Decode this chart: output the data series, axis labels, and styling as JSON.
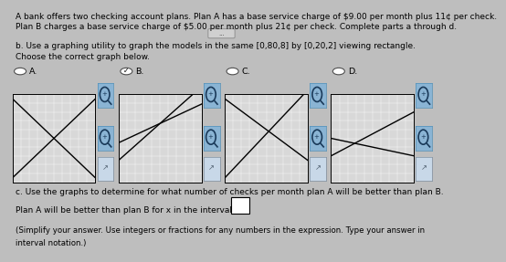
{
  "bg_color": "#bebebe",
  "text_color": "#000000",
  "line1": "A bank offers two checking account plans. Plan A has a base service charge of $9.00 per month plus 11¢ per check.",
  "line2": "Plan B charges a base service charge of $5.00 per month plus 21¢ per check. Complete parts a through d.",
  "part_b": "b. Use a graphing utility to graph the models in the same [0,80,8] by [0,20,2] viewing rectangle.",
  "choose": "Choose the correct graph below.",
  "options": [
    "A.",
    "B.",
    "C.",
    "D."
  ],
  "selected": 1,
  "part_c": "c. Use the graphs to determine for what number of checks per month plan A will be better than plan B.",
  "plan_text": "Plan A will be better than plan B for x in the interval",
  "simplify1": "(Simplify your answer. Use integers or fractions for any numbers in the expression. Type your answer in",
  "simplify2": "interval notation.)",
  "xmin": 0,
  "xmax": 80,
  "ymin": 0,
  "ymax": 20,
  "planA_m": 0.11,
  "planA_b": 9.0,
  "planB_m": 0.21,
  "planB_b": 5.0,
  "graph_bg": "#d8d8d8",
  "graph_line_color": "#000000",
  "graph_spine_color": "#000000",
  "graph_grid_color": "#ffffff",
  "btn_face": "#8ab4d4",
  "btn_edge": "#5090b8",
  "link_face": "#c8d8e8",
  "link_edge": "#8090a0",
  "line_defs": [
    [
      [
        0,
        19,
        80,
        1
      ],
      [
        0,
        1,
        80,
        19
      ]
    ],
    [
      [
        0,
        9,
        80,
        17.8
      ],
      [
        0,
        5,
        80,
        21.8
      ]
    ],
    [
      [
        0,
        19,
        80,
        5
      ],
      [
        0,
        1,
        80,
        21
      ]
    ],
    [
      [
        0,
        10,
        80,
        6
      ],
      [
        0,
        6,
        80,
        16
      ]
    ]
  ],
  "font_size": 6.5
}
